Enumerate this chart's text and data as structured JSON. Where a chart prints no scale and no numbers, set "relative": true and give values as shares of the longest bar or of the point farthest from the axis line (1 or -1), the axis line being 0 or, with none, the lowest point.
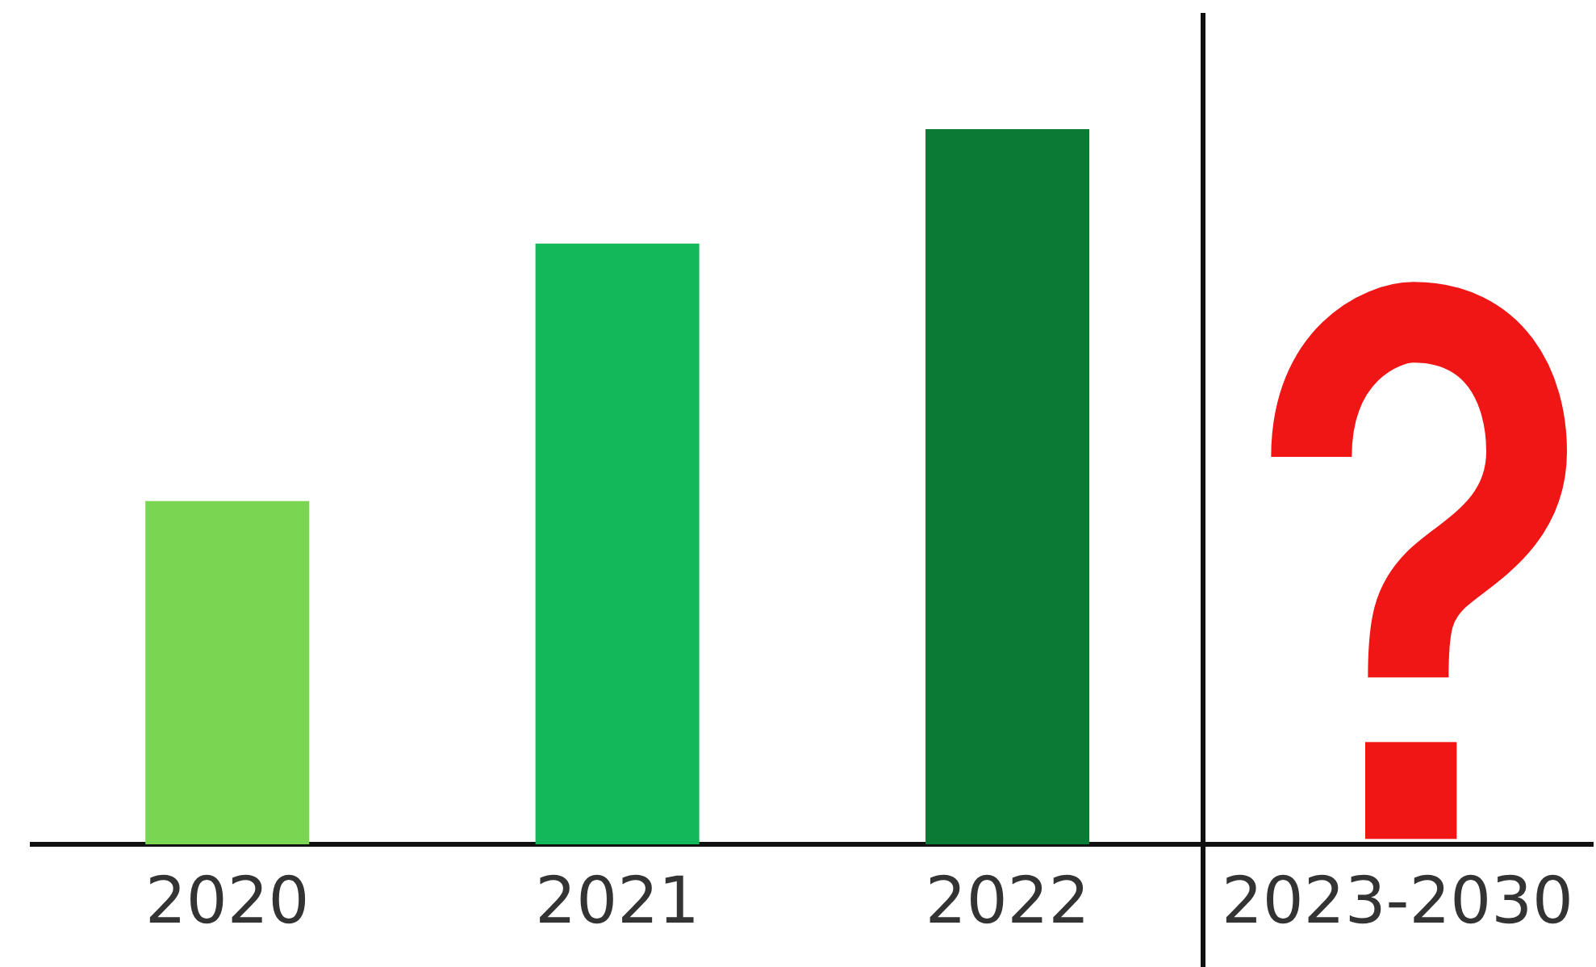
{
  "chart_data": {
    "type": "bar",
    "relative": true,
    "categories": [
      "2020",
      "2021",
      "2022",
      "2023-2030"
    ],
    "values": [
      0.48,
      0.84,
      1,
      null
    ],
    "colors": [
      "#7ad652",
      "#12b85a",
      "#0a7a35",
      "#0a7a35"
    ],
    "grid": false,
    "legend": false
  }
}
